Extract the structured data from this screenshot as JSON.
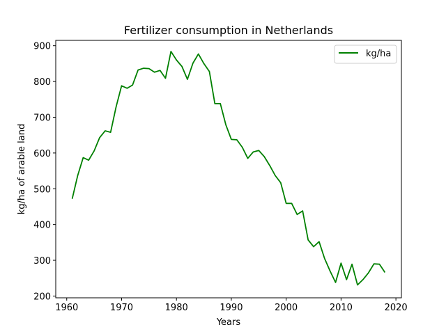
{
  "chart_data": {
    "type": "line",
    "title": "Fertilizer consumption in Netherlands",
    "xlabel": "Years",
    "ylabel": "kg/ha of arable land",
    "xlim": [
      1958,
      2021
    ],
    "ylim": [
      195,
      915
    ],
    "xticks": [
      1960,
      1970,
      1980,
      1990,
      2000,
      2010,
      2020
    ],
    "yticks": [
      200,
      300,
      400,
      500,
      600,
      700,
      800,
      900
    ],
    "grid": false,
    "legend_position": "top-right",
    "series": [
      {
        "name": "kg/ha",
        "color": "#008000",
        "x": [
          1961,
          1962,
          1963,
          1964,
          1965,
          1966,
          1967,
          1968,
          1969,
          1970,
          1971,
          1972,
          1973,
          1974,
          1975,
          1976,
          1977,
          1978,
          1979,
          1980,
          1981,
          1982,
          1983,
          1984,
          1985,
          1986,
          1987,
          1988,
          1989,
          1990,
          1991,
          1992,
          1993,
          1994,
          1995,
          1996,
          1997,
          1998,
          1999,
          2000,
          2001,
          2002,
          2003,
          2004,
          2005,
          2006,
          2007,
          2008,
          2009,
          2010,
          2011,
          2012,
          2013,
          2014,
          2015,
          2016,
          2017,
          2018
        ],
        "y": [
          472,
          537,
          587,
          580,
          606,
          643,
          662,
          658,
          729,
          788,
          781,
          790,
          832,
          837,
          836,
          826,
          831,
          809,
          884,
          860,
          842,
          806,
          851,
          877,
          850,
          828,
          738,
          738,
          679,
          638,
          637,
          616,
          585,
          603,
          607,
          590,
          565,
          537,
          517,
          459,
          459,
          428,
          438,
          357,
          338,
          352,
          305,
          270,
          238,
          292,
          246,
          289,
          231,
          246,
          265,
          290,
          289,
          266
        ]
      }
    ]
  }
}
